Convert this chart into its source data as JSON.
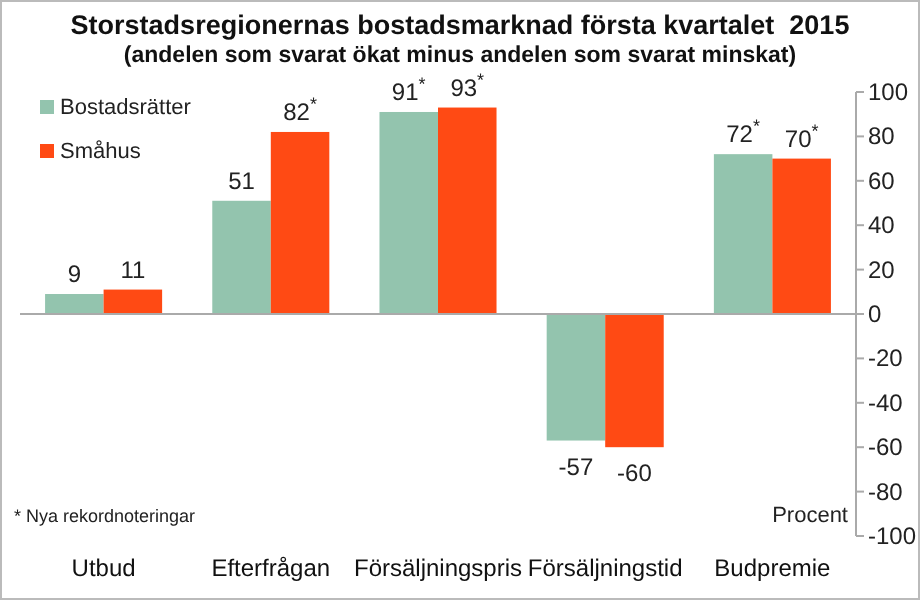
{
  "chart_data": {
    "type": "bar",
    "title": "Storstadsregionernas bostadsmarknad första kvartalet  2015",
    "subtitle": "(andelen som svarat ökat minus andelen som svarat minskat)",
    "ylabel": "Procent",
    "categories": [
      "Utbud",
      "Efterfrågan",
      "Försäljningspris",
      "Försäljningstid",
      "Budpremie"
    ],
    "series": [
      {
        "name": "Bostadsrätter",
        "color": "#93c4ae",
        "values": [
          9,
          51,
          91,
          -57,
          72
        ],
        "value_labels": [
          "9",
          "51",
          "91$^{*}$",
          "-57",
          "72$^{*}$"
        ]
      },
      {
        "name": "Småhus",
        "color": "#ff4a14",
        "values": [
          11,
          82,
          93,
          -60,
          70
        ],
        "value_labels": [
          "11",
          "82$^{*}$",
          "93$^{*}$",
          "-60",
          "70$^{*}$"
        ]
      }
    ],
    "ylim": [
      -100,
      100
    ],
    "yticks": [
      -100,
      -80,
      -60,
      -40,
      -20,
      0,
      20,
      40,
      60,
      80,
      100
    ],
    "legend": "top left",
    "annotations": [
      "* Nya rekordnoteringar"
    ]
  }
}
